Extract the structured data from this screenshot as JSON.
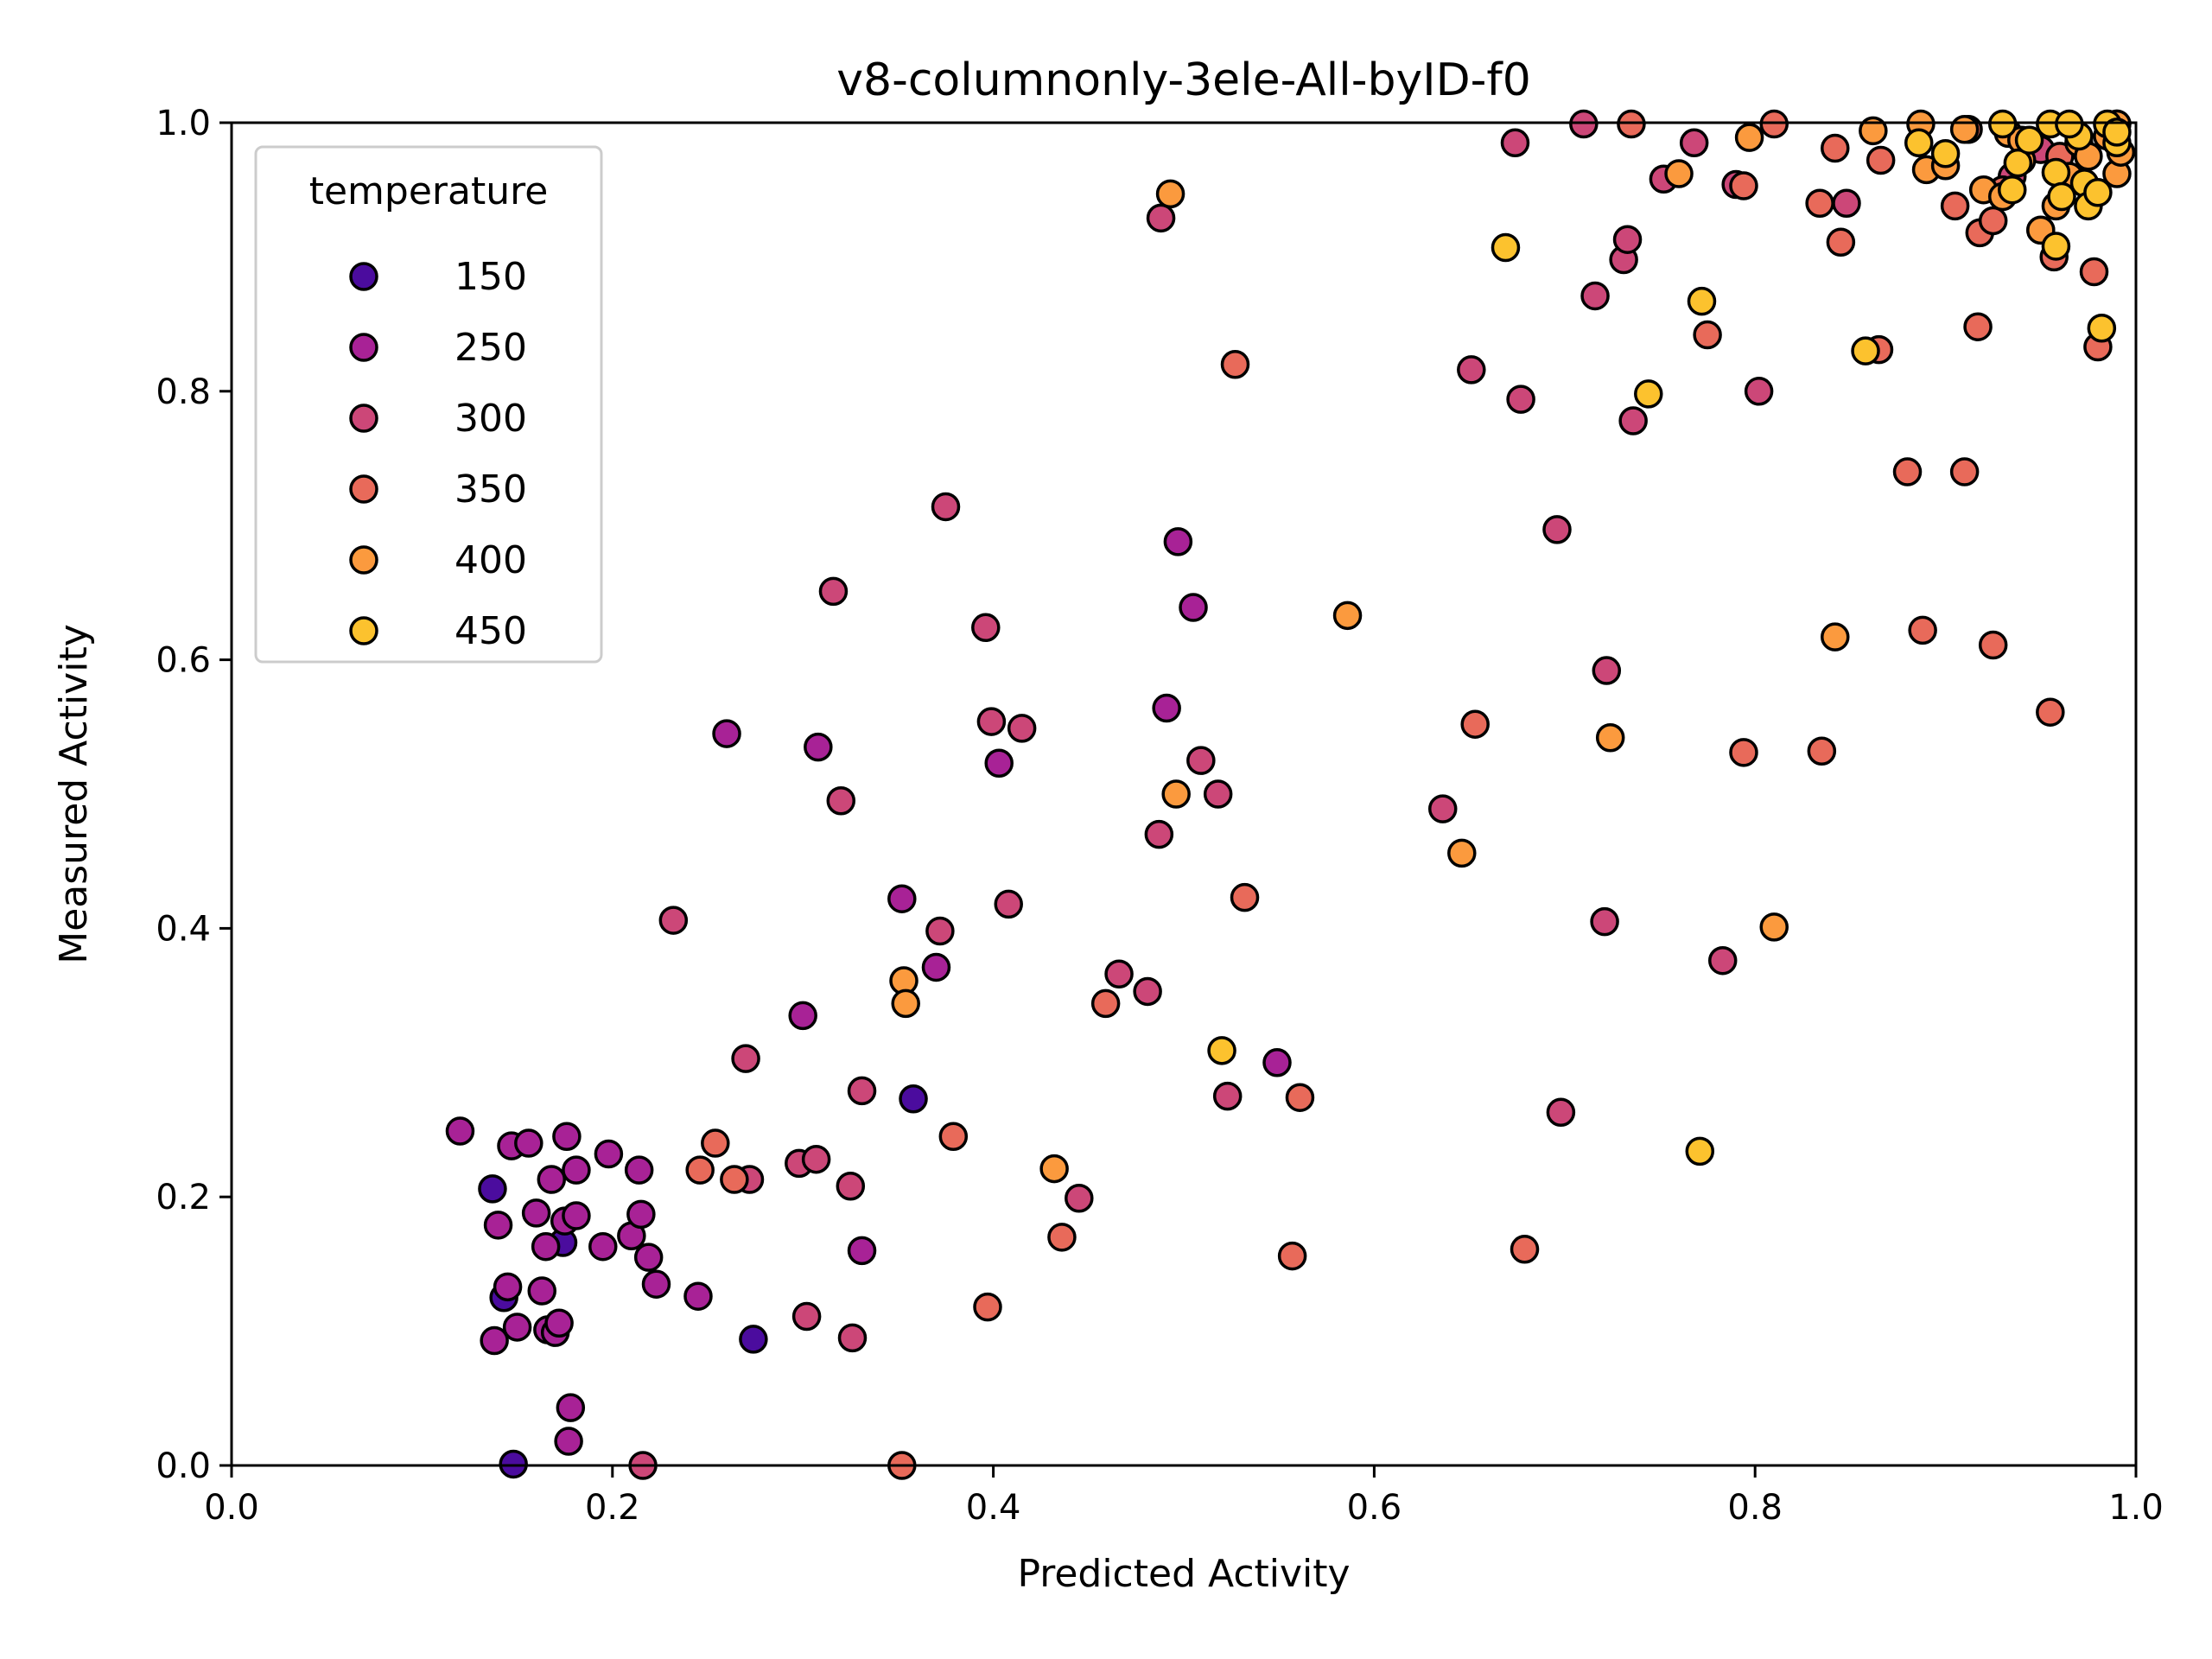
{
  "chart_data": {
    "type": "scatter",
    "title": "v8-columnonly-3ele-All-byID-f0",
    "xlabel": "Predicted Activity",
    "ylabel": "Measured Activity",
    "xlim": [
      0.0,
      1.0
    ],
    "ylim": [
      0.0,
      1.0
    ],
    "xticks": [
      "0.0",
      "0.2",
      "0.4",
      "0.6",
      "0.8",
      "1.0"
    ],
    "yticks": [
      "0.0",
      "0.2",
      "0.4",
      "0.6",
      "0.8",
      "1.0"
    ],
    "grid": false,
    "legend": {
      "title": "temperature",
      "placement": "upper-left",
      "entries": [
        {
          "label": "150",
          "color": "#4b0c9e"
        },
        {
          "label": "250",
          "color": "#a82296"
        },
        {
          "label": "300",
          "color": "#cc4778"
        },
        {
          "label": "350",
          "color": "#e86a5a"
        },
        {
          "label": "400",
          "color": "#fb9a3e"
        },
        {
          "label": "450",
          "color": "#fcc22e"
        }
      ]
    },
    "series": [
      {
        "name": "150",
        "points": [
          [
            0.137,
            0.206
          ],
          [
            0.143,
            0.125
          ],
          [
            0.148,
            0.001
          ],
          [
            0.174,
            0.166
          ],
          [
            0.274,
            0.094
          ],
          [
            0.358,
            0.273
          ]
        ]
      },
      {
        "name": "250",
        "points": [
          [
            0.12,
            0.249
          ],
          [
            0.138,
            0.093
          ],
          [
            0.14,
            0.179
          ],
          [
            0.145,
            0.133
          ],
          [
            0.147,
            0.238
          ],
          [
            0.15,
            0.103
          ],
          [
            0.156,
            0.24
          ],
          [
            0.16,
            0.188
          ],
          [
            0.163,
            0.13
          ],
          [
            0.165,
            0.163
          ],
          [
            0.166,
            0.101
          ],
          [
            0.168,
            0.213
          ],
          [
            0.17,
            0.099
          ],
          [
            0.172,
            0.106
          ],
          [
            0.175,
            0.182
          ],
          [
            0.176,
            0.245
          ],
          [
            0.177,
            0.018
          ],
          [
            0.178,
            0.043
          ],
          [
            0.181,
            0.22
          ],
          [
            0.181,
            0.186
          ],
          [
            0.195,
            0.163
          ],
          [
            0.198,
            0.232
          ],
          [
            0.21,
            0.171
          ],
          [
            0.214,
            0.22
          ],
          [
            0.215,
            0.187
          ],
          [
            0.219,
            0.155
          ],
          [
            0.223,
            0.135
          ],
          [
            0.245,
            0.126
          ],
          [
            0.26,
            0.545
          ],
          [
            0.3,
            0.335
          ],
          [
            0.308,
            0.535
          ],
          [
            0.331,
            0.16
          ],
          [
            0.352,
            0.422
          ],
          [
            0.37,
            0.371
          ],
          [
            0.403,
            0.523
          ],
          [
            0.491,
            0.564
          ],
          [
            0.497,
            0.688
          ],
          [
            0.505,
            0.639
          ],
          [
            0.549,
            0.3
          ]
        ]
      },
      {
        "name": "300",
        "points": [
          [
            0.216,
            0.0
          ],
          [
            0.232,
            0.406
          ],
          [
            0.27,
            0.303
          ],
          [
            0.272,
            0.213
          ],
          [
            0.298,
            0.225
          ],
          [
            0.302,
            0.111
          ],
          [
            0.307,
            0.228
          ],
          [
            0.316,
            0.651
          ],
          [
            0.32,
            0.495
          ],
          [
            0.325,
            0.208
          ],
          [
            0.326,
            0.095
          ],
          [
            0.331,
            0.279
          ],
          [
            0.372,
            0.398
          ],
          [
            0.375,
            0.714
          ],
          [
            0.396,
            0.624
          ],
          [
            0.399,
            0.554
          ],
          [
            0.408,
            0.418
          ],
          [
            0.415,
            0.549
          ],
          [
            0.445,
            0.199
          ],
          [
            0.466,
            0.366
          ],
          [
            0.481,
            0.353
          ],
          [
            0.487,
            0.47
          ],
          [
            0.509,
            0.525
          ],
          [
            0.518,
            0.5
          ],
          [
            0.523,
            0.275
          ],
          [
            0.488,
            0.929
          ],
          [
            0.636,
            0.489
          ],
          [
            0.651,
            0.816
          ],
          [
            0.674,
            0.985
          ],
          [
            0.677,
            0.794
          ],
          [
            0.696,
            0.697
          ],
          [
            0.698,
            0.263
          ],
          [
            0.716,
            0.871
          ],
          [
            0.721,
            0.405
          ],
          [
            0.722,
            0.592
          ],
          [
            0.731,
            0.898
          ],
          [
            0.733,
            0.913
          ],
          [
            0.736,
            0.778
          ],
          [
            0.783,
            0.376
          ],
          [
            0.802,
            0.8
          ],
          [
            0.71,
            0.999
          ],
          [
            0.768,
            0.985
          ],
          [
            0.79,
            0.954
          ],
          [
            0.752,
            0.958
          ],
          [
            0.848,
            0.94
          ],
          [
            0.99,
            0.999
          ],
          [
            0.935,
            0.96
          ],
          [
            0.95,
            0.98
          ]
        ]
      },
      {
        "name": "350",
        "points": [
          [
            0.246,
            0.22
          ],
          [
            0.254,
            0.24
          ],
          [
            0.264,
            0.213
          ],
          [
            0.352,
            0.0
          ],
          [
            0.379,
            0.245
          ],
          [
            0.397,
            0.118
          ],
          [
            0.436,
            0.17
          ],
          [
            0.459,
            0.344
          ],
          [
            0.527,
            0.82
          ],
          [
            0.532,
            0.423
          ],
          [
            0.561,
            0.274
          ],
          [
            0.557,
            0.156
          ],
          [
            0.653,
            0.552
          ],
          [
            0.679,
            0.161
          ],
          [
            0.735,
            0.999
          ],
          [
            0.775,
            0.842
          ],
          [
            0.794,
            0.531
          ],
          [
            0.794,
            0.953
          ],
          [
            0.81,
            0.999
          ],
          [
            0.834,
            0.94
          ],
          [
            0.835,
            0.532
          ],
          [
            0.842,
            0.981
          ],
          [
            0.845,
            0.911
          ],
          [
            0.866,
            0.972
          ],
          [
            0.865,
            0.831
          ],
          [
            0.88,
            0.74
          ],
          [
            0.888,
            0.622
          ],
          [
            0.91,
            0.74
          ],
          [
            0.917,
            0.848
          ],
          [
            0.918,
            0.918
          ],
          [
            0.925,
            0.611
          ],
          [
            0.905,
            0.938
          ],
          [
            0.912,
            0.995
          ],
          [
            0.925,
            0.927
          ],
          [
            0.955,
            0.561
          ],
          [
            0.957,
            0.9
          ],
          [
            0.97,
            0.983
          ],
          [
            0.93,
            0.95
          ],
          [
            0.95,
            0.92
          ],
          [
            0.96,
            0.975
          ],
          [
            0.978,
            0.889
          ],
          [
            0.98,
            0.833
          ]
        ]
      },
      {
        "name": "400",
        "points": [
          [
            0.353,
            0.361
          ],
          [
            0.354,
            0.344
          ],
          [
            0.432,
            0.221
          ],
          [
            0.493,
            0.947
          ],
          [
            0.496,
            0.5
          ],
          [
            0.586,
            0.633
          ],
          [
            0.646,
            0.456
          ],
          [
            0.724,
            0.542
          ],
          [
            0.797,
            0.989
          ],
          [
            0.81,
            0.401
          ],
          [
            0.842,
            0.617
          ],
          [
            0.862,
            0.994
          ],
          [
            0.887,
            0.999
          ],
          [
            0.89,
            0.965
          ],
          [
            0.9,
            0.968
          ],
          [
            0.91,
            0.995
          ],
          [
            0.92,
            0.95
          ],
          [
            0.933,
            0.992
          ],
          [
            0.94,
            0.972
          ],
          [
            0.95,
            0.92
          ],
          [
            0.958,
            0.938
          ],
          [
            0.965,
            0.96
          ],
          [
            0.97,
            0.985
          ],
          [
            0.975,
            0.975
          ],
          [
            0.985,
            0.99
          ],
          [
            0.99,
            0.962
          ],
          [
            0.992,
            0.978
          ],
          [
            0.94,
            0.987
          ],
          [
            0.93,
            0.945
          ],
          [
            0.76,
            0.962
          ],
          [
            0.99,
            0.999
          ]
        ]
      },
      {
        "name": "450",
        "points": [
          [
            0.52,
            0.309
          ],
          [
            0.669,
            0.907
          ],
          [
            0.744,
            0.798
          ],
          [
            0.771,
            0.234
          ],
          [
            0.772,
            0.867
          ],
          [
            0.858,
            0.83
          ],
          [
            0.886,
            0.985
          ],
          [
            0.9,
            0.977
          ],
          [
            0.93,
            0.999
          ],
          [
            0.935,
            0.95
          ],
          [
            0.938,
            0.97
          ],
          [
            0.944,
            0.987
          ],
          [
            0.955,
            0.999
          ],
          [
            0.958,
            0.963
          ],
          [
            0.958,
            0.908
          ],
          [
            0.961,
            0.945
          ],
          [
            0.97,
            0.99
          ],
          [
            0.973,
            0.955
          ],
          [
            0.975,
            0.938
          ],
          [
            0.98,
            0.948
          ],
          [
            0.982,
            0.847
          ],
          [
            0.985,
            0.999
          ],
          [
            0.99,
            0.985
          ],
          [
            0.965,
            0.999
          ],
          [
            0.99,
            0.993
          ]
        ]
      }
    ]
  }
}
